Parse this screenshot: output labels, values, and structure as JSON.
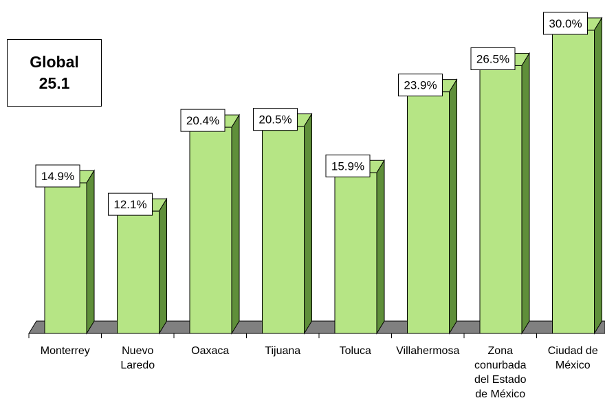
{
  "global": {
    "label": "Global",
    "value": "25.1"
  },
  "chart_data": {
    "type": "bar",
    "categories": [
      [
        "Monterrey"
      ],
      [
        "Nuevo",
        "Laredo"
      ],
      [
        "Oaxaca"
      ],
      [
        "Tijuana"
      ],
      [
        "Toluca"
      ],
      [
        "Villahermosa"
      ],
      [
        "Zona",
        "conurbada",
        "del Estado",
        "de México"
      ],
      [
        "Ciudad de",
        "México"
      ]
    ],
    "values": [
      14.9,
      12.1,
      20.4,
      20.5,
      15.9,
      23.9,
      26.5,
      30.0
    ],
    "data_labels": [
      "14.9%",
      "12.1%",
      "20.4%",
      "20.5%",
      "15.9%",
      "23.9%",
      "26.5%",
      "30.0%"
    ],
    "ylim": [
      0,
      30
    ],
    "grid": false,
    "legend": "none",
    "colors": {
      "bar_front": "#b6e585",
      "bar_side": "#5f8f3a",
      "floor": "#808080",
      "label_bg": "#ffffff"
    }
  }
}
